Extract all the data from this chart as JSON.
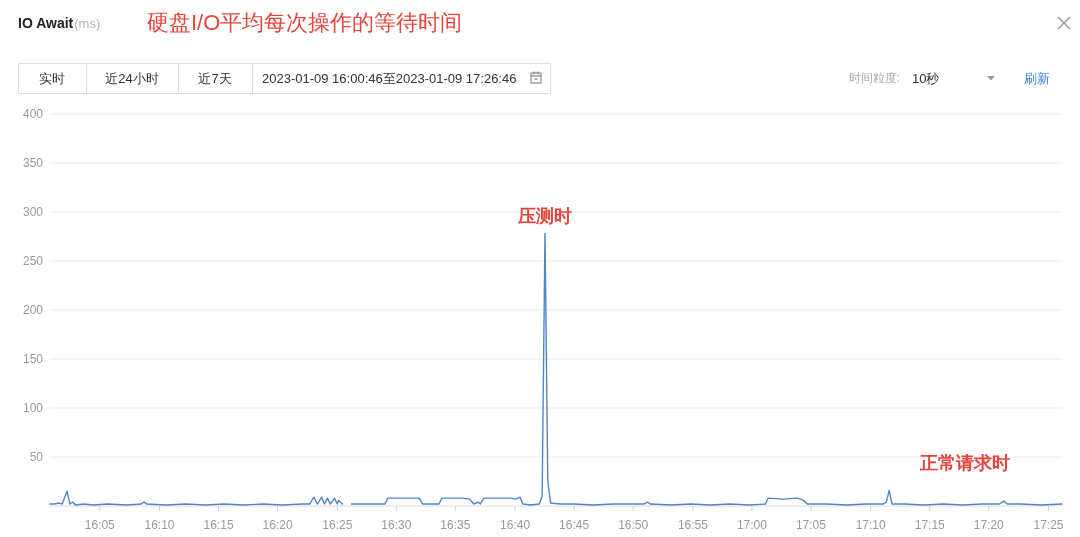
{
  "chart_data": {
    "type": "line",
    "title": "IO Await",
    "annotations": [
      "(ms)",
      "硬盘I/O平均每次操作的等待时间",
      "实时",
      "近24小时",
      "近7天",
      "2023-01-09 16:00:46至2023-01-09 17:26:46",
      "时间粒度:",
      "10秒",
      "刷新",
      {
        "text": "压测时",
        "x": 16.709,
        "y": 278
      },
      "正常请求时"
    ],
    "series": [
      {
        "color": "#4f86c6",
        "x": [
          16.013,
          16.019,
          16.026,
          16.03,
          16.037,
          16.041,
          16.045,
          16.049,
          16.06,
          16.074,
          16.094,
          16.122,
          16.141,
          16.145,
          16.149,
          16.176,
          16.204,
          16.231,
          16.258,
          16.286,
          16.313,
          16.34,
          16.368,
          16.378,
          16.384,
          16.389,
          16.395,
          16.399,
          16.403,
          16.407,
          16.413,
          16.417,
          16.419,
          16.424
        ],
        "values": [
          2,
          2,
          3,
          2,
          15,
          2,
          4,
          1,
          2,
          1,
          2,
          1,
          2,
          4,
          2,
          1,
          2,
          1,
          2,
          1,
          2,
          1,
          2,
          2,
          9,
          2,
          9,
          2,
          8,
          2,
          8,
          2,
          6,
          2
        ]
      },
      {
        "color": "#4f86c6",
        "x": [
          16.437,
          16.456,
          16.477,
          16.484,
          16.488,
          16.504,
          16.518,
          16.532,
          16.537,
          16.552,
          16.56,
          16.564,
          16.579,
          16.593,
          16.603,
          16.609,
          16.615,
          16.618,
          16.623,
          16.641,
          16.661,
          16.668,
          16.674,
          16.678,
          16.689,
          16.701,
          16.705,
          16.709,
          16.713,
          16.717,
          16.73,
          16.75,
          16.777,
          16.805,
          16.832,
          16.848,
          16.853,
          16.857,
          16.887,
          16.914,
          16.941,
          16.969,
          16.996,
          17.019,
          17.023,
          17.044,
          17.064,
          17.072,
          17.078,
          17.105,
          17.133,
          17.16,
          17.185,
          17.189,
          17.193,
          17.197,
          17.215,
          17.242,
          17.269,
          17.297,
          17.324,
          17.348,
          17.354,
          17.359,
          17.378,
          17.406,
          17.436
        ],
        "values": [
          2,
          2,
          2,
          2,
          8,
          8,
          8,
          8,
          2,
          2,
          2,
          8,
          8,
          8,
          7,
          2,
          4,
          2,
          8,
          8,
          8,
          7,
          9,
          2,
          1,
          2,
          10,
          278,
          25,
          3,
          2,
          2,
          1,
          2,
          2,
          2,
          4,
          2,
          1,
          2,
          1,
          2,
          1,
          2,
          8,
          7,
          8,
          6,
          2,
          2,
          1,
          2,
          2,
          4,
          16,
          2,
          2,
          1,
          2,
          1,
          2,
          2,
          5,
          2,
          2,
          1,
          2
        ]
      }
    ],
    "xlim": [
      16.013,
      17.436
    ],
    "ylim": [
      0,
      400
    ],
    "xticks": [
      {
        "value": 16.083,
        "label": "16:05"
      },
      {
        "value": 16.167,
        "label": "16:10"
      },
      {
        "value": 16.25,
        "label": "16:15"
      },
      {
        "value": 16.333,
        "label": "16:20"
      },
      {
        "value": 16.417,
        "label": "16:25"
      },
      {
        "value": 16.5,
        "label": "16:30"
      },
      {
        "value": 16.583,
        "label": "16:35"
      },
      {
        "value": 16.667,
        "label": "16:40"
      },
      {
        "value": 16.75,
        "label": "16:45"
      },
      {
        "value": 16.833,
        "label": "16:50"
      },
      {
        "value": 16.917,
        "label": "16:55"
      },
      {
        "value": 17,
        "label": "17:00"
      },
      {
        "value": 17.083,
        "label": "17:05"
      },
      {
        "value": 17.167,
        "label": "17:10"
      },
      {
        "value": 17.25,
        "label": "17:15"
      },
      {
        "value": 17.333,
        "label": "17:20"
      },
      {
        "value": 17.417,
        "label": "17:25"
      }
    ],
    "yticks": [
      50,
      100,
      150,
      200,
      250,
      300,
      350,
      400
    ],
    "grid": "y",
    "line_style": "solid"
  }
}
